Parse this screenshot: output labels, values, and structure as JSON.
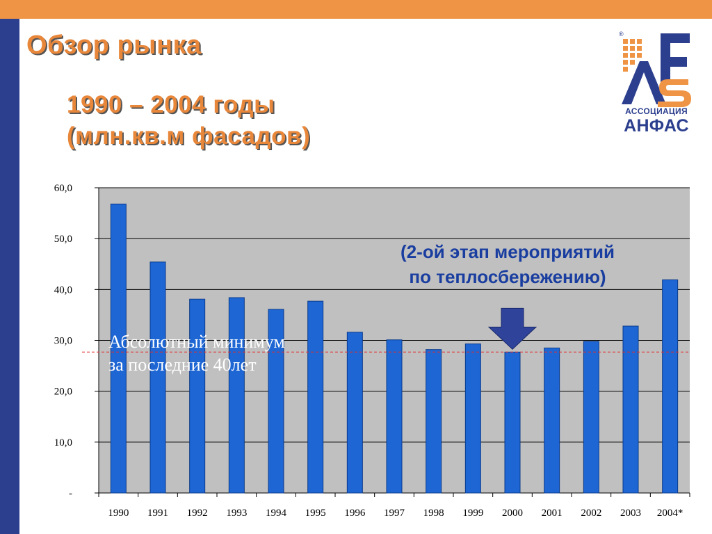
{
  "header": {
    "title": "Обзор рынка",
    "subtitle_line_1": "1990 – 2004 годы",
    "subtitle_line_2": "(млн.кв.м фасадов)"
  },
  "logo": {
    "line_1": "АССОЦИАЦИЯ",
    "line_2": "АНФАС",
    "mark_letters": "AFAS",
    "registered_mark": "®"
  },
  "annotations": {
    "minimum_line_1": "Абсолютный минимум",
    "minimum_line_2": "за последние 40лет",
    "stage_line_1": "(2-ой этап мероприятий",
    "stage_line_2": "по теплосбережению)"
  },
  "colors": {
    "accent_orange": "#ee9444",
    "brand_blue": "#2c3f8e",
    "bar_fill": "#1d66d4",
    "plot_background": "#c0c0c0",
    "reference_line": "#e03030",
    "arrow_fill": "#2e4399"
  },
  "chart_data": {
    "type": "bar",
    "categories": [
      "1990",
      "1991",
      "1992",
      "1993",
      "1994",
      "1995",
      "1996",
      "1997",
      "1998",
      "1999",
      "2000",
      "2001",
      "2002",
      "2003",
      "2004*"
    ],
    "values": [
      56.8,
      45.4,
      38.1,
      38.4,
      36.1,
      37.7,
      31.6,
      30.1,
      28.2,
      29.3,
      27.7,
      28.5,
      29.8,
      32.8,
      41.9
    ],
    "y_ticks": [
      "-",
      "10,0",
      "20,0",
      "30,0",
      "40,0",
      "50,0",
      "60,0"
    ],
    "ylim": [
      0,
      60
    ],
    "grid": true,
    "reference_line_value": 27.7,
    "arrow_category": "2000",
    "legend": "none"
  }
}
